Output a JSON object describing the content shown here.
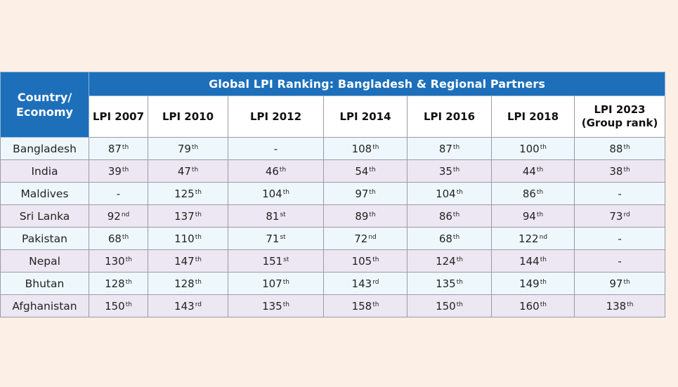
{
  "table": {
    "country_header": [
      "Country/",
      "Economy"
    ],
    "title": "Global LPI Ranking: Bangladesh & Regional Partners",
    "years": [
      [
        "LPI 2007"
      ],
      [
        "LPI 2010"
      ],
      [
        "LPI 2012"
      ],
      [
        "LPI 2014"
      ],
      [
        "LPI 2016"
      ],
      [
        "LPI 2018"
      ],
      [
        "LPI 2023",
        "(Group rank)"
      ]
    ],
    "rows": [
      {
        "country": "Bangladesh",
        "cells": [
          [
            "87",
            "th"
          ],
          [
            "79",
            "th"
          ],
          [
            "-",
            ""
          ],
          [
            "108",
            "th"
          ],
          [
            "87",
            "th"
          ],
          [
            "100",
            "th"
          ],
          [
            "88",
            "th"
          ]
        ]
      },
      {
        "country": "India",
        "cells": [
          [
            "39",
            "th"
          ],
          [
            "47",
            "th"
          ],
          [
            "46",
            "th"
          ],
          [
            "54",
            "th"
          ],
          [
            "35",
            "th"
          ],
          [
            "44",
            "th"
          ],
          [
            "38",
            "th"
          ]
        ]
      },
      {
        "country": "Maldives",
        "cells": [
          [
            "-",
            ""
          ],
          [
            "125",
            "th"
          ],
          [
            "104",
            "th"
          ],
          [
            "97",
            "th"
          ],
          [
            "104",
            "th"
          ],
          [
            "86",
            "th"
          ],
          [
            "-",
            ""
          ]
        ]
      },
      {
        "country": "Sri Lanka",
        "cells": [
          [
            "92",
            "nd"
          ],
          [
            "137",
            "th"
          ],
          [
            "81",
            "st"
          ],
          [
            "89",
            "th"
          ],
          [
            "86",
            "th"
          ],
          [
            "94",
            "th"
          ],
          [
            "73",
            "rd"
          ]
        ]
      },
      {
        "country": "Pakistan",
        "cells": [
          [
            "68",
            "th"
          ],
          [
            "110",
            "th"
          ],
          [
            "71",
            "st"
          ],
          [
            "72",
            "nd"
          ],
          [
            "68",
            "th"
          ],
          [
            "122",
            "nd"
          ],
          [
            "-",
            ""
          ]
        ]
      },
      {
        "country": "Nepal",
        "cells": [
          [
            "130",
            "th"
          ],
          [
            "147",
            "th"
          ],
          [
            "151",
            "st"
          ],
          [
            "105",
            "th"
          ],
          [
            "124",
            "th"
          ],
          [
            "144",
            "th"
          ],
          [
            "-",
            ""
          ]
        ]
      },
      {
        "country": "Bhutan",
        "cells": [
          [
            "128",
            "th"
          ],
          [
            "128",
            "th"
          ],
          [
            "107",
            "th"
          ],
          [
            "143",
            "rd"
          ],
          [
            "135",
            "th"
          ],
          [
            "149",
            "th"
          ],
          [
            "97",
            "th"
          ]
        ]
      },
      {
        "country": "Afghanistan",
        "cells": [
          [
            "150",
            "th"
          ],
          [
            "143",
            "rd"
          ],
          [
            "135",
            "th"
          ],
          [
            "158",
            "th"
          ],
          [
            "150",
            "th"
          ],
          [
            "160",
            "th"
          ],
          [
            "138",
            "th"
          ]
        ]
      }
    ]
  },
  "colors": {
    "header_blue": "#1d6fba",
    "page_background": "#fbefe6",
    "row_light": "#eef8fc",
    "row_mauve": "#ece7f2"
  }
}
